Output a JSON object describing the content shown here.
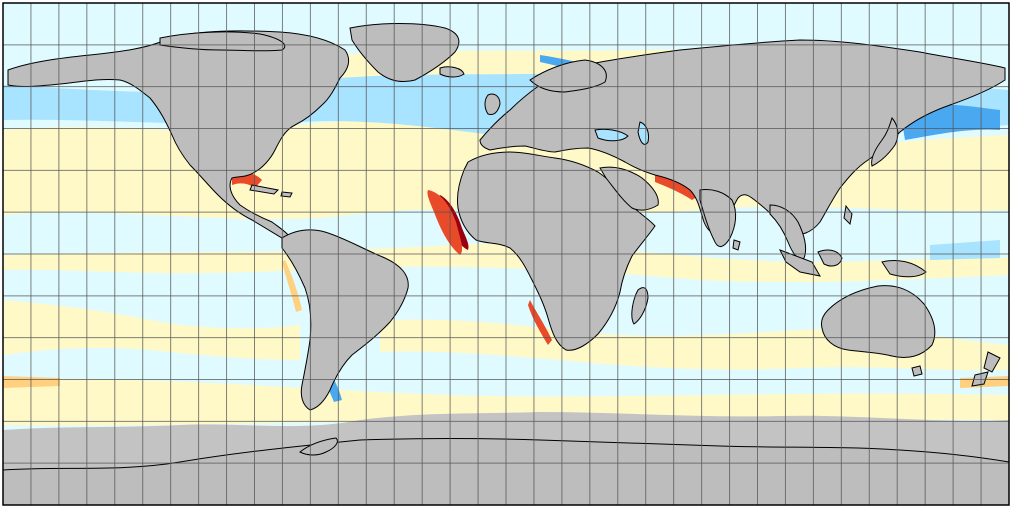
{
  "map": {
    "projection": "equirectangular",
    "grid_lines": "on",
    "land_color": "#bdbdbd",
    "ice_color": "#c3c3c3",
    "coastline_color": "#000000",
    "grid_color": "#555555",
    "palette": {
      "strong_negative": "#1a2fd6",
      "negative": "#4aa8f0",
      "slight_negative": "#a8e4ff",
      "neutral": "#dffbff",
      "slight_positive": "#fff9c8",
      "positive": "#ffd080",
      "strong_positive": "#e84a2a",
      "extreme_positive": "#9a0010"
    }
  }
}
